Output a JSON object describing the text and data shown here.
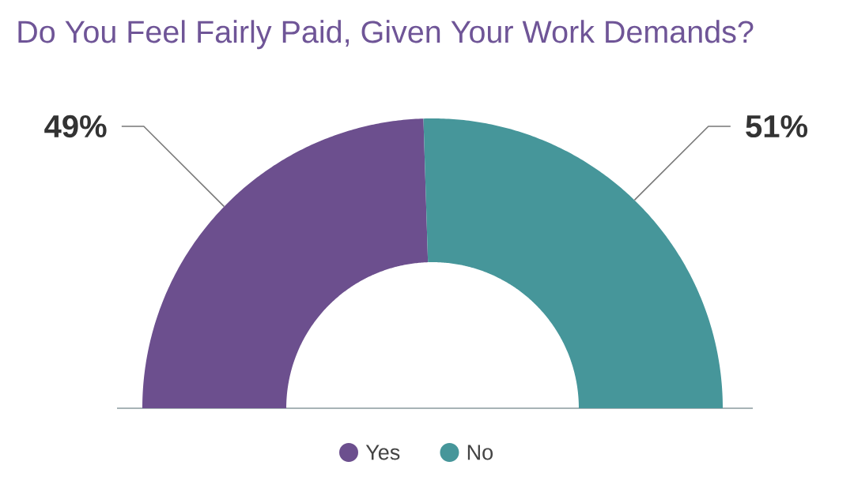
{
  "chart_data": {
    "type": "donut",
    "title": "Do You Feel Fairly Paid, Given Your Work Demands?",
    "categories": [
      "Yes",
      "No"
    ],
    "values": [
      49,
      51
    ],
    "colors": [
      "#6c4f8e",
      "#46969a"
    ],
    "value_labels": [
      "49%",
      "51%"
    ],
    "legend": "bottom"
  }
}
